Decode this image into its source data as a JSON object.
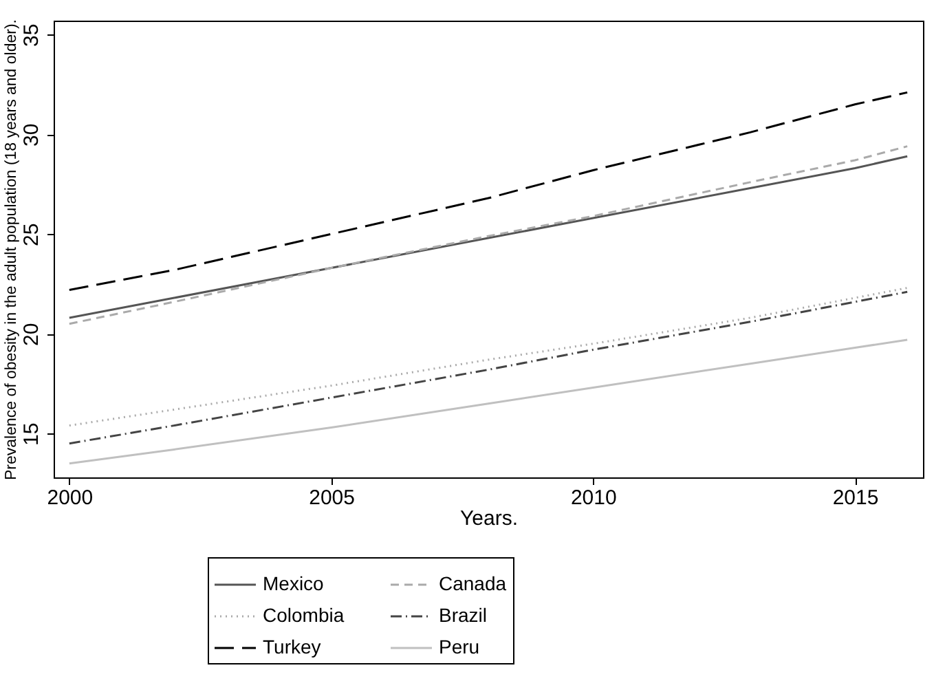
{
  "chart_data": {
    "type": "line",
    "xlabel": "Years.",
    "ylabel": "Prevalence of obesity in the adult population (18 years and older).",
    "x": [
      2000,
      2002,
      2005,
      2008,
      2010,
      2013,
      2015,
      2016
    ],
    "series": [
      {
        "name": "Mexico",
        "color": "#555555",
        "line_style": "solid",
        "values": [
          20.8,
          21.8,
          23.3,
          24.8,
          25.8,
          27.3,
          28.3,
          28.9
        ]
      },
      {
        "name": "Canada",
        "color": "#aaaaaa",
        "line_style": "dashed",
        "values": [
          20.5,
          21.6,
          23.3,
          24.9,
          25.9,
          27.6,
          28.7,
          29.4
        ]
      },
      {
        "name": "Colombia",
        "color": "#aaaaaa",
        "line_style": "dotted",
        "values": [
          15.4,
          16.2,
          17.4,
          18.7,
          19.5,
          20.8,
          21.8,
          22.3
        ]
      },
      {
        "name": "Brazil",
        "color": "#444444",
        "line_style": "dashdot",
        "values": [
          14.5,
          15.4,
          16.8,
          18.2,
          19.2,
          20.6,
          21.6,
          22.1
        ]
      },
      {
        "name": "Turkey",
        "color": "#000000",
        "line_style": "longdash",
        "values": [
          22.2,
          23.2,
          25.0,
          26.8,
          28.2,
          30.1,
          31.5,
          32.1
        ]
      },
      {
        "name": "Peru",
        "color": "#c0c0c0",
        "line_style": "solid",
        "values": [
          13.5,
          14.2,
          15.3,
          16.5,
          17.3,
          18.5,
          19.3,
          19.7
        ]
      }
    ],
    "xlim": [
      1999.7,
      2016.3
    ],
    "xticks": [
      2000,
      2005,
      2010,
      2015
    ],
    "ylim": [
      12.8,
      35.7
    ],
    "yticks": [
      15,
      20,
      25,
      30,
      35
    ],
    "grid": false,
    "legend": "bottom",
    "marker": "none"
  }
}
